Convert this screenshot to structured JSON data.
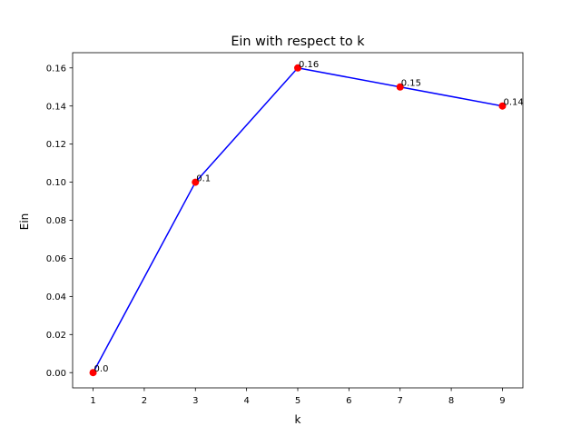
{
  "chart_data": {
    "type": "line",
    "title": "Ein with respect to k",
    "xlabel": "k",
    "ylabel": "Ein",
    "x": [
      1,
      3,
      5,
      7,
      9
    ],
    "series": [
      {
        "values": [
          0.0,
          0.1,
          0.16,
          0.15,
          0.14
        ],
        "labels": [
          "0.0",
          "0.1",
          "0.16",
          "0.15",
          "0.14"
        ],
        "line_color": "#0000ff",
        "marker_color": "#ff0000"
      }
    ],
    "xlim": [
      0.6,
      9.4
    ],
    "ylim": [
      -0.008,
      0.168
    ],
    "xticks": [
      1,
      2,
      3,
      4,
      5,
      6,
      7,
      8,
      9
    ],
    "xtick_labels": [
      "1",
      "2",
      "3",
      "4",
      "5",
      "6",
      "7",
      "8",
      "9"
    ],
    "yticks": [
      0.0,
      0.02,
      0.04,
      0.06,
      0.08,
      0.1,
      0.12,
      0.14,
      0.16
    ],
    "ytick_labels": [
      "0.00",
      "0.02",
      "0.04",
      "0.06",
      "0.08",
      "0.10",
      "0.12",
      "0.14",
      "0.16"
    ],
    "grid": false,
    "legend": "none"
  }
}
